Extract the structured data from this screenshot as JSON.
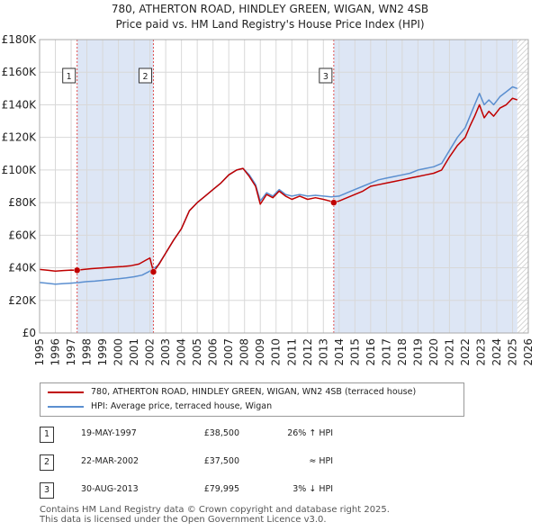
{
  "title_line1": "780, ATHERTON ROAD, HINDLEY GREEN, WIGAN, WN2 4SB",
  "title_line2": "Price paid vs. HM Land Registry's House Price Index (HPI)",
  "colors": {
    "property": "#c00000",
    "hpi": "#5b8fd0",
    "shade": "#dde6f5",
    "grid": "#d8d8d8",
    "vline": "#e05050"
  },
  "chart_data": {
    "type": "line",
    "title": "Price paid vs. HM Land Registry's House Price Index (HPI)",
    "xlabel": "",
    "ylabel": "",
    "xlim": [
      1995,
      2026
    ],
    "ylim": [
      0,
      180000
    ],
    "y_ticks": [
      0,
      20000,
      40000,
      60000,
      80000,
      100000,
      120000,
      140000,
      160000,
      180000
    ],
    "y_tick_labels": [
      "£0",
      "£20K",
      "£40K",
      "£60K",
      "£80K",
      "£100K",
      "£120K",
      "£140K",
      "£160K",
      "£180K"
    ],
    "x_ticks": [
      1995,
      1996,
      1997,
      1998,
      1999,
      2000,
      2001,
      2002,
      2003,
      2004,
      2005,
      2006,
      2007,
      2008,
      2009,
      2010,
      2011,
      2012,
      2013,
      2014,
      2015,
      2016,
      2017,
      2018,
      2019,
      2020,
      2021,
      2022,
      2023,
      2024,
      2025,
      2026
    ],
    "x_tick_labels": [
      "1995",
      "1996",
      "1997",
      "1998",
      "1999",
      "2000",
      "2001",
      "2002",
      "2003",
      "2004",
      "2005",
      "2006",
      "2007",
      "2008",
      "2009",
      "2010",
      "2011",
      "2012",
      "2013",
      "2014",
      "2015",
      "2016",
      "2017",
      "2018",
      "2019",
      "2020",
      "2021",
      "2022",
      "2023",
      "2024",
      "2025",
      "2026"
    ],
    "grid": true,
    "shaded_periods": [
      [
        1997.38,
        2002.22
      ],
      [
        2013.66,
        2025.3
      ]
    ],
    "hatched_from": 2025.3,
    "series": [
      {
        "name": "780, ATHERTON ROAD, HINDLEY GREEN, WIGAN, WN2 4SB (terraced house)",
        "color": "#c00000",
        "x": [
          1995.0,
          1995.5,
          1996.0,
          1996.5,
          1997.0,
          1997.38,
          1997.8,
          1998.3,
          1998.8,
          1999.3,
          1999.8,
          2000.3,
          2000.8,
          2001.3,
          2001.8,
          2002.0,
          2002.22,
          2002.6,
          2003.0,
          2003.5,
          2004.0,
          2004.5,
          2005.0,
          2005.5,
          2006.0,
          2006.5,
          2007.0,
          2007.5,
          2007.9,
          2008.3,
          2008.7,
          2009.0,
          2009.4,
          2009.8,
          2010.2,
          2010.6,
          2011.0,
          2011.5,
          2012.0,
          2012.5,
          2013.0,
          2013.4,
          2013.66,
          2014.0,
          2014.5,
          2015.0,
          2015.5,
          2016.0,
          2016.5,
          2017.0,
          2017.5,
          2018.0,
          2018.5,
          2019.0,
          2019.5,
          2020.0,
          2020.5,
          2021.0,
          2021.5,
          2022.0,
          2022.3,
          2022.6,
          2022.9,
          2023.2,
          2023.5,
          2023.8,
          2024.2,
          2024.6,
          2025.0,
          2025.3
        ],
        "values": [
          39000,
          38500,
          38000,
          38300,
          38600,
          38500,
          39000,
          39500,
          39800,
          40200,
          40500,
          40800,
          41300,
          42300,
          45000,
          46000,
          37500,
          42500,
          49000,
          57000,
          64000,
          75000,
          80000,
          84000,
          88000,
          92000,
          97000,
          100000,
          101000,
          96000,
          90000,
          79000,
          85000,
          83000,
          87000,
          84000,
          82000,
          84000,
          82000,
          83000,
          82000,
          81000,
          79995,
          81000,
          83000,
          85000,
          87000,
          90000,
          91000,
          92000,
          93000,
          94000,
          95000,
          96000,
          97000,
          98000,
          100000,
          108000,
          115000,
          120000,
          127000,
          133000,
          140000,
          132000,
          136000,
          133000,
          138000,
          140000,
          144000,
          143000
        ]
      },
      {
        "name": "HPI: Average price, terraced house, Wigan",
        "color": "#5b8fd0",
        "x": [
          1995.0,
          1995.5,
          1996.0,
          1996.5,
          1997.0,
          1997.5,
          1998.0,
          1998.5,
          1999.0,
          1999.5,
          2000.0,
          2000.5,
          2001.0,
          2001.5,
          2002.0,
          2002.5,
          2003.0,
          2003.5,
          2004.0,
          2004.5,
          2005.0,
          2005.5,
          2006.0,
          2006.5,
          2007.0,
          2007.5,
          2007.9,
          2008.3,
          2008.7,
          2009.0,
          2009.4,
          2009.8,
          2010.2,
          2010.6,
          2011.0,
          2011.5,
          2012.0,
          2012.5,
          2013.0,
          2013.5,
          2014.0,
          2014.5,
          2015.0,
          2015.5,
          2016.0,
          2016.5,
          2017.0,
          2017.5,
          2018.0,
          2018.5,
          2019.0,
          2019.5,
          2020.0,
          2020.5,
          2021.0,
          2021.5,
          2022.0,
          2022.3,
          2022.6,
          2022.9,
          2023.2,
          2023.5,
          2023.8,
          2024.2,
          2024.6,
          2025.0,
          2025.3
        ],
        "values": [
          31000,
          30500,
          30000,
          30300,
          30600,
          31000,
          31500,
          31800,
          32300,
          32800,
          33300,
          33800,
          34500,
          35500,
          38000,
          41500,
          49000,
          57000,
          64000,
          75000,
          80000,
          84000,
          88000,
          92000,
          97000,
          100000,
          101000,
          97000,
          91000,
          81000,
          86000,
          84000,
          88000,
          85000,
          84000,
          85000,
          84000,
          84500,
          84000,
          83500,
          84000,
          86000,
          88000,
          90000,
          92000,
          94000,
          95000,
          96000,
          97000,
          98000,
          100000,
          101000,
          102000,
          104000,
          112000,
          120000,
          126000,
          133000,
          140000,
          147000,
          140000,
          143000,
          140000,
          145000,
          148000,
          151000,
          150000
        ]
      }
    ],
    "sale_markers": [
      {
        "label": "1",
        "x": 1997.38,
        "value": 38500
      },
      {
        "label": "2",
        "x": 2002.22,
        "value": 37500
      },
      {
        "label": "3",
        "x": 2013.66,
        "value": 79995
      }
    ]
  },
  "legend": {
    "property": "780, ATHERTON ROAD, HINDLEY GREEN, WIGAN, WN2 4SB (terraced house)",
    "hpi": "HPI: Average price, terraced house, Wigan"
  },
  "transactions": [
    {
      "num": "1",
      "date": "19-MAY-1997",
      "price": "£38,500",
      "diff": "26% ↑ HPI"
    },
    {
      "num": "2",
      "date": "22-MAR-2002",
      "price": "£37,500",
      "diff": "≈ HPI"
    },
    {
      "num": "3",
      "date": "30-AUG-2013",
      "price": "£79,995",
      "diff": "3% ↓ HPI"
    }
  ],
  "footer": {
    "line1": "Contains HM Land Registry data © Crown copyright and database right 2025.",
    "line2": "This data is licensed under the Open Government Licence v3.0."
  }
}
